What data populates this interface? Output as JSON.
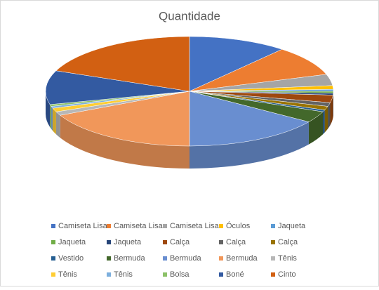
{
  "chart_data": {
    "type": "pie3d",
    "title": "Quantidade",
    "categories": [
      "Camiseta Lisa",
      "Camiseta Lisa",
      "Camiseta Lisa",
      "Óculos",
      "Jaqueta",
      "Jaqueta",
      "Jaqueta",
      "Calça",
      "Calça",
      "Calça",
      "Vestido",
      "Bermuda",
      "Bermuda",
      "Bermuda",
      "Tênis",
      "Tênis",
      "Tênis",
      "Bolsa",
      "Boné",
      "Cinto"
    ],
    "values": [
      10,
      8,
      3,
      1,
      0.5,
      0.5,
      0.5,
      2,
      1,
      1,
      0.5,
      3,
      14,
      16,
      1,
      1,
      0.5,
      0.5,
      9,
      17
    ],
    "colors": [
      "#4472C4",
      "#ED7D31",
      "#A5A5A5",
      "#FFC000",
      "#5B9BD5",
      "#70AD47",
      "#264478",
      "#9E480E",
      "#636363",
      "#997300",
      "#255E91",
      "#43682B",
      "#698ED0",
      "#F1975A",
      "#B7B7B7",
      "#FFCD33",
      "#7CAFDD",
      "#8CC168",
      "#335AA1",
      "#D26012"
    ],
    "legend": "bottom"
  }
}
